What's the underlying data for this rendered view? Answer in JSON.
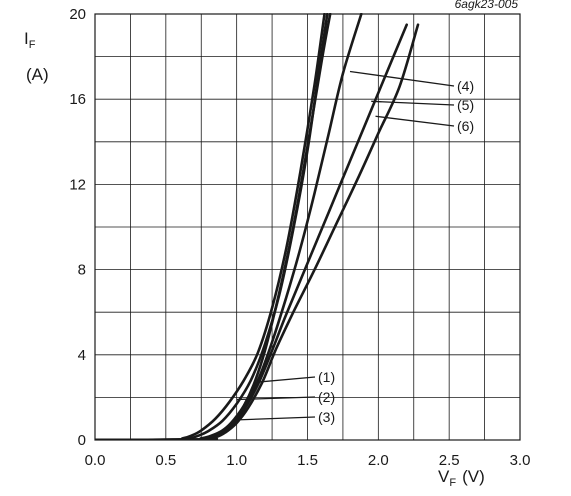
{
  "figure_code": "6agk23-005",
  "ylabel": {
    "symbol": "I",
    "subscript": "F",
    "unit": "(A)"
  },
  "xlabel": {
    "symbol": "V",
    "subscript": "F",
    "unit": "(V)"
  },
  "chart_data": {
    "type": "line",
    "xlim": [
      0,
      3.0
    ],
    "ylim": [
      0,
      20
    ],
    "grid": true,
    "x_ticks": [
      "0.0",
      "0.5",
      "1.0",
      "1.5",
      "2.0",
      "2.5",
      "3.0"
    ],
    "y_ticks": [
      "0",
      "4",
      "8",
      "12",
      "16",
      "20"
    ],
    "series": [
      {
        "name": "(1)",
        "color": "#1a1a1a",
        "x": [
          0,
          0.55,
          0.62,
          0.68,
          0.75,
          0.85,
          0.95,
          1.05,
          1.15,
          1.25,
          1.35,
          1.45,
          1.55,
          1.62
        ],
        "y": [
          0,
          0.02,
          0.08,
          0.2,
          0.45,
          1.0,
          1.8,
          2.8,
          4.1,
          6.2,
          9.0,
          12.6,
          16.7,
          20
        ]
      },
      {
        "name": "(2)",
        "color": "#1a1a1a",
        "x": [
          0,
          0.6,
          0.67,
          0.73,
          0.8,
          0.9,
          1.0,
          1.1,
          1.2,
          1.3,
          1.4,
          1.5,
          1.58,
          1.64
        ],
        "y": [
          0,
          0.02,
          0.08,
          0.2,
          0.42,
          0.9,
          1.7,
          2.8,
          4.5,
          6.8,
          9.9,
          13.6,
          17.3,
          20
        ]
      },
      {
        "name": "(3)",
        "color": "#1a1a1a",
        "x": [
          0,
          0.68,
          0.75,
          0.82,
          0.9,
          0.98,
          1.05,
          1.12,
          1.2,
          1.3,
          1.4,
          1.5,
          1.6,
          1.66
        ],
        "y": [
          0,
          0.02,
          0.08,
          0.2,
          0.45,
          0.9,
          1.6,
          2.6,
          4.2,
          6.9,
          10.0,
          13.8,
          17.8,
          20
        ]
      },
      {
        "name": "(4)",
        "color": "#1a1a1a",
        "x": [
          0,
          0.72,
          0.8,
          0.88,
          0.96,
          1.05,
          1.15,
          1.25,
          1.35,
          1.45,
          1.55,
          1.65,
          1.75,
          1.88
        ],
        "y": [
          0,
          0.02,
          0.12,
          0.35,
          0.8,
          1.6,
          2.8,
          4.6,
          6.7,
          9.0,
          11.6,
          14.4,
          17.2,
          20
        ]
      },
      {
        "name": "(5)",
        "color": "#1a1a1a",
        "x": [
          0,
          0.75,
          0.82,
          0.9,
          0.98,
          1.05,
          1.15,
          1.25,
          1.35,
          1.5,
          1.65,
          1.8,
          1.95,
          2.1,
          2.2
        ],
        "y": [
          0,
          0.02,
          0.12,
          0.35,
          0.8,
          1.4,
          2.6,
          4.2,
          5.9,
          8.3,
          10.7,
          13.1,
          15.5,
          17.9,
          19.5
        ]
      },
      {
        "name": "(6)",
        "color": "#1a1a1a",
        "x": [
          0,
          0.78,
          0.85,
          0.92,
          1.0,
          1.08,
          1.18,
          1.28,
          1.4,
          1.55,
          1.7,
          1.85,
          2.0,
          2.15,
          2.28
        ],
        "y": [
          0,
          0.02,
          0.12,
          0.35,
          0.8,
          1.5,
          2.7,
          4.3,
          6.0,
          8.0,
          10.1,
          12.2,
          14.4,
          16.6,
          19.5
        ]
      }
    ],
    "annotations": [
      {
        "text": "(1)",
        "arrow_to": [
          1.12,
          2.7
        ]
      },
      {
        "text": "(2)",
        "arrow_to": [
          1.0,
          1.9
        ]
      },
      {
        "text": "(3)",
        "arrow_to": [
          1.03,
          0.95
        ]
      },
      {
        "text": "(4)",
        "arrow_to": [
          1.8,
          17.3
        ]
      },
      {
        "text": "(5)",
        "arrow_to": [
          1.95,
          15.9
        ]
      },
      {
        "text": "(6)",
        "arrow_to": [
          1.98,
          15.2
        ]
      }
    ]
  }
}
